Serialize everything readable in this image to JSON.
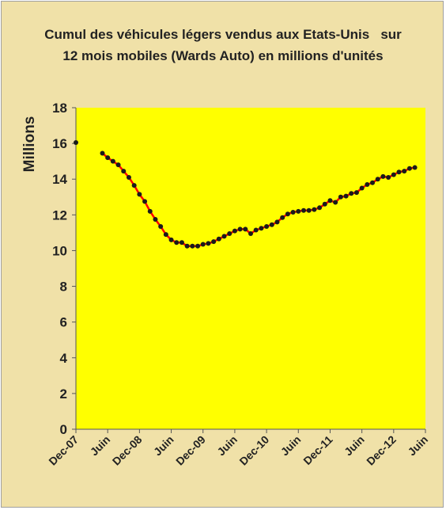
{
  "chart_data": {
    "type": "line",
    "title_line1": "Cumul des véhicules légers vendus aux Etats-Unis   sur",
    "title_line2": "12 mois mobiles (Wards Auto) en millions d'unités",
    "ylabel": "Millions",
    "xlabel": "",
    "ylim": [
      0,
      18
    ],
    "yticks": [
      0,
      2,
      4,
      6,
      8,
      10,
      12,
      14,
      16,
      18
    ],
    "x_ticks": [
      {
        "label": "Dec-07",
        "month": 0
      },
      {
        "label": "Juin",
        "month": 6
      },
      {
        "label": "Dec-08",
        "month": 12
      },
      {
        "label": "Juin",
        "month": 18
      },
      {
        "label": "Dec-09",
        "month": 24
      },
      {
        "label": "Juin",
        "month": 30
      },
      {
        "label": "Dec-10",
        "month": 36
      },
      {
        "label": "Juin",
        "month": 42
      },
      {
        "label": "Dec-11",
        "month": 48
      },
      {
        "label": "Juin",
        "month": 54
      },
      {
        "label": "Dec-12",
        "month": 60
      },
      {
        "label": "Juin",
        "month": 66
      }
    ],
    "x_range_months": [
      0,
      66
    ],
    "grid": false,
    "legend": "none",
    "colors": {
      "plot_background": "#ffff00",
      "chart_background": "#f0e1a8",
      "line": "#ff0000",
      "markers": "#1a1a1a"
    },
    "series": [
      {
        "first_month": 0,
        "values": [
          16.05
        ]
      },
      {
        "first_month": 5,
        "values": [
          15.45,
          15.2,
          15.0,
          14.8,
          14.45,
          14.1,
          13.65,
          13.15,
          12.75,
          12.2,
          11.75,
          11.35,
          10.9,
          10.6,
          10.45,
          10.45,
          10.25,
          10.25,
          10.25,
          10.35,
          10.4,
          10.5,
          10.65,
          10.8,
          10.95,
          11.1,
          11.2,
          11.2,
          10.95,
          11.15,
          11.25,
          11.35,
          11.45,
          11.6,
          11.85,
          12.05,
          12.15,
          12.2,
          12.25,
          12.25,
          12.3,
          12.4,
          12.6,
          12.8,
          12.7,
          13.0,
          13.05,
          13.2,
          13.25,
          13.5,
          13.7,
          13.8,
          14.0,
          14.15,
          14.1,
          14.25,
          14.4,
          14.45,
          14.6,
          14.65
        ]
      }
    ]
  }
}
